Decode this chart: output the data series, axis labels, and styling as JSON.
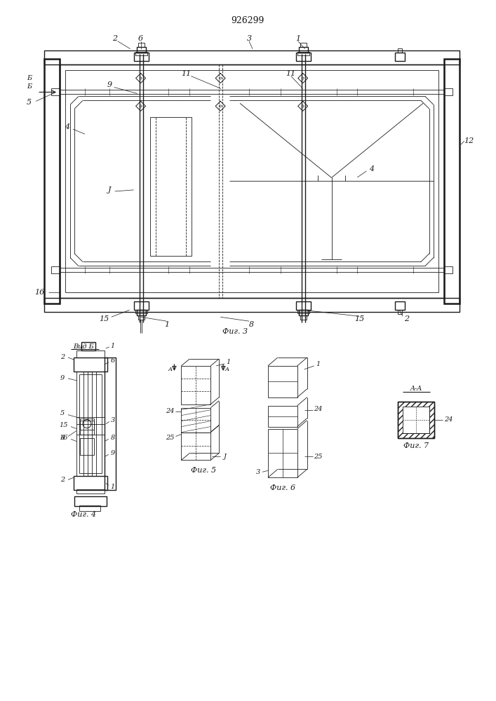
{
  "title": "926299",
  "bg_color": "#ffffff",
  "line_color": "#1a1a1a",
  "fig3_caption": "Фиг. 3",
  "fig4_caption": "Фиг. 4",
  "fig5_caption": "Фиг. 5",
  "fig6_caption": "Фиг. 6",
  "fig7_caption": "Фиг. 7",
  "vid_b_label": "Вид Б"
}
